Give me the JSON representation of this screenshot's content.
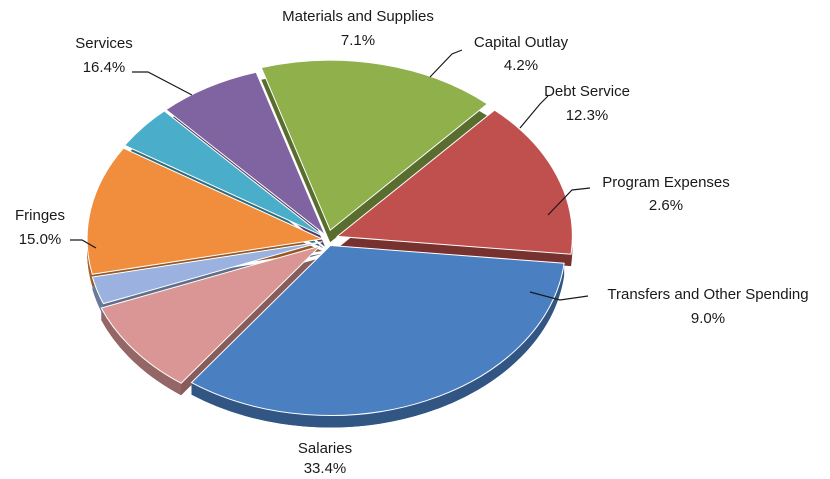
{
  "chart_data": {
    "type": "pie",
    "style": "3d-exploded",
    "labels_shown": "name and percent",
    "slices": [
      {
        "name": "Salaries",
        "value": 33.4,
        "label": "33.4%",
        "color": "#4a7fc1"
      },
      {
        "name": "Transfers and Other Spending",
        "value": 9.0,
        "label": "9.0%",
        "color": "#d99694"
      },
      {
        "name": "Program Expenses",
        "value": 2.6,
        "label": "2.6%",
        "color": "#9bb2e0"
      },
      {
        "name": "Debt Service",
        "value": 12.3,
        "label": "12.3%",
        "color": "#f08e3e"
      },
      {
        "name": "Capital Outlay",
        "value": 4.2,
        "label": "4.2%",
        "color": "#4aaecb"
      },
      {
        "name": "Materials and Supplies",
        "value": 7.1,
        "label": "7.1%",
        "color": "#8064a2"
      },
      {
        "name": "Services",
        "value": 16.4,
        "label": "16.4%",
        "color": "#8fb04a"
      },
      {
        "name": "Fringes",
        "value": 15.0,
        "label": "15.0%",
        "color": "#c0504d"
      }
    ]
  }
}
